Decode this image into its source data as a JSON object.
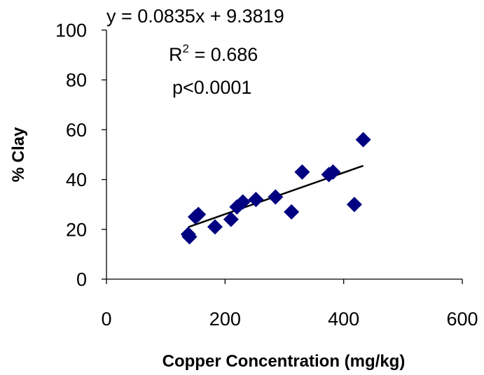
{
  "chart_data": {
    "type": "scatter",
    "xlabel": "Copper Concentration (mg/kg)",
    "ylabel": "% Clay",
    "xlim": [
      0,
      600
    ],
    "ylim": [
      0,
      100
    ],
    "x_ticks": [
      "0",
      "200",
      "400",
      "600"
    ],
    "y_ticks": [
      "0",
      "20",
      "40",
      "60",
      "80",
      "100"
    ],
    "grid": false,
    "legend": "none",
    "marker": "diamond",
    "marker_color": "#000080",
    "series": [
      {
        "points": [
          {
            "x": 138,
            "y": 18
          },
          {
            "x": 140,
            "y": 17
          },
          {
            "x": 150,
            "y": 25
          },
          {
            "x": 155,
            "y": 26
          },
          {
            "x": 183,
            "y": 21
          },
          {
            "x": 210,
            "y": 24
          },
          {
            "x": 220,
            "y": 29
          },
          {
            "x": 230,
            "y": 31
          },
          {
            "x": 252,
            "y": 32
          },
          {
            "x": 285,
            "y": 33
          },
          {
            "x": 312,
            "y": 27
          },
          {
            "x": 330,
            "y": 43
          },
          {
            "x": 375,
            "y": 42
          },
          {
            "x": 382,
            "y": 43
          },
          {
            "x": 418,
            "y": 30
          },
          {
            "x": 433,
            "y": 56
          }
        ]
      }
    ],
    "trendline": {
      "slope": 0.0835,
      "intercept": 9.3819,
      "x_range": [
        138,
        433
      ],
      "color": "#000000"
    },
    "annotations": {
      "equation": "y = 0.0835x + 9.3819",
      "r2_base": "R",
      "r2_exp": "2",
      "r2_value": " = 0.686",
      "pvalue": "p<0.0001"
    }
  }
}
